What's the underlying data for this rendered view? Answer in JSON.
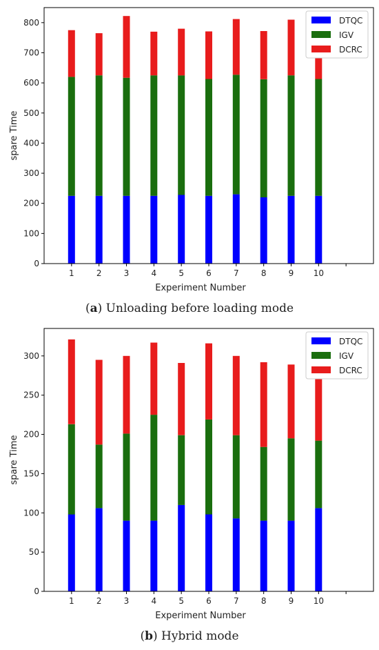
{
  "colors": {
    "DTQC": "#0000ff",
    "IGV": "#1a6e0e",
    "DCRC": "#e81c1c"
  },
  "chart_data": [
    {
      "type": "bar",
      "stacked": true,
      "caption_letter": "a",
      "caption_text": " Unloading before loading mode",
      "xlabel": "Experiment Number",
      "ylabel": "spare Time",
      "categories": [
        "1",
        "2",
        "3",
        "4",
        "5",
        "6",
        "7",
        "8",
        "9",
        "10"
      ],
      "xlim": [
        0,
        12
      ],
      "ylim": [
        0,
        850
      ],
      "yticks": [
        0,
        100,
        200,
        300,
        400,
        500,
        600,
        700,
        800
      ],
      "legend": "top-right",
      "series": [
        {
          "name": "DTQC",
          "values": [
            225,
            225,
            225,
            225,
            228,
            225,
            230,
            220,
            225,
            225
          ]
        },
        {
          "name": "IGV",
          "values": [
            395,
            400,
            392,
            400,
            397,
            388,
            397,
            392,
            400,
            388
          ]
        },
        {
          "name": "DCRC",
          "values": [
            155,
            140,
            205,
            145,
            155,
            158,
            185,
            160,
            185,
            155
          ]
        }
      ]
    },
    {
      "type": "bar",
      "stacked": true,
      "caption_letter": "b",
      "caption_text": " Hybrid mode",
      "xlabel": "Experiment Number",
      "ylabel": "spare Time",
      "categories": [
        "1",
        "2",
        "3",
        "4",
        "5",
        "6",
        "7",
        "8",
        "9",
        "10"
      ],
      "xlim": [
        0,
        12
      ],
      "ylim": [
        0,
        335
      ],
      "yticks": [
        0,
        50,
        100,
        150,
        200,
        250,
        300
      ],
      "legend": "top-right",
      "series": [
        {
          "name": "DTQC",
          "values": [
            98,
            106,
            90,
            90,
            110,
            98,
            93,
            90,
            90,
            106
          ]
        },
        {
          "name": "IGV",
          "values": [
            115,
            81,
            111,
            135,
            89,
            121,
            106,
            94,
            105,
            86
          ]
        },
        {
          "name": "DCRC",
          "values": [
            108,
            108,
            99,
            92,
            92,
            97,
            101,
            108,
            94,
            91
          ]
        }
      ]
    }
  ]
}
